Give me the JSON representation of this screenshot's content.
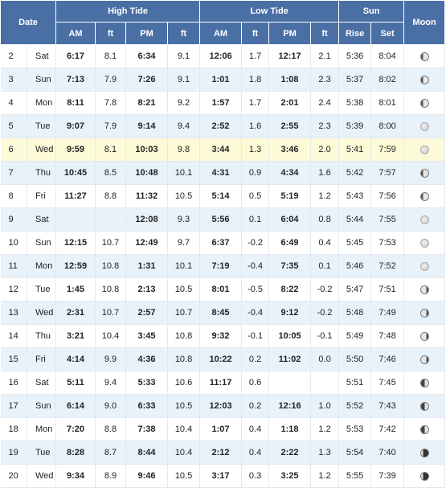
{
  "header": {
    "date": "Date",
    "high_tide": "High Tide",
    "low_tide": "Low Tide",
    "sun": "Sun",
    "moon": "Moon",
    "am": "AM",
    "pm": "PM",
    "ft": "ft",
    "rise": "Rise",
    "set": "Set"
  },
  "rows": [
    {
      "date": "2",
      "day": "Sat",
      "h_am": "6:17",
      "h_am_ft": "8.1",
      "h_pm": "6:34",
      "h_pm_ft": "9.1",
      "l_am": "12:06",
      "l_am_ft": "1.7",
      "l_pm": "12:17",
      "l_pm_ft": "2.1",
      "rise": "5:36",
      "set": "8:04",
      "moon": "waning-gibbous-icon"
    },
    {
      "date": "3",
      "day": "Sun",
      "h_am": "7:13",
      "h_am_ft": "7.9",
      "h_pm": "7:26",
      "h_pm_ft": "9.1",
      "l_am": "1:01",
      "l_am_ft": "1.8",
      "l_pm": "1:08",
      "l_pm_ft": "2.3",
      "rise": "5:37",
      "set": "8:02",
      "moon": "waning-gibbous-icon"
    },
    {
      "date": "4",
      "day": "Mon",
      "h_am": "8:11",
      "h_am_ft": "7.8",
      "h_pm": "8:21",
      "h_pm_ft": "9.2",
      "l_am": "1:57",
      "l_am_ft": "1.7",
      "l_pm": "2:01",
      "l_pm_ft": "2.4",
      "rise": "5:38",
      "set": "8:01",
      "moon": "waning-gibbous-icon"
    },
    {
      "date": "5",
      "day": "Tue",
      "h_am": "9:07",
      "h_am_ft": "7.9",
      "h_pm": "9:14",
      "h_pm_ft": "9.4",
      "l_am": "2:52",
      "l_am_ft": "1.6",
      "l_pm": "2:55",
      "l_pm_ft": "2.3",
      "rise": "5:39",
      "set": "8:00",
      "moon": "full-moon-icon"
    },
    {
      "date": "6",
      "day": "Wed",
      "h_am": "9:59",
      "h_am_ft": "8.1",
      "h_pm": "10:03",
      "h_pm_ft": "9.8",
      "l_am": "3:44",
      "l_am_ft": "1.3",
      "l_pm": "3:46",
      "l_pm_ft": "2.0",
      "rise": "5:41",
      "set": "7:59",
      "moon": "full-moon-icon",
      "today": true
    },
    {
      "date": "7",
      "day": "Thu",
      "h_am": "10:45",
      "h_am_ft": "8.5",
      "h_pm": "10:48",
      "h_pm_ft": "10.1",
      "l_am": "4:31",
      "l_am_ft": "0.9",
      "l_pm": "4:34",
      "l_pm_ft": "1.6",
      "rise": "5:42",
      "set": "7:57",
      "moon": "waning-gibbous-icon"
    },
    {
      "date": "8",
      "day": "Fri",
      "h_am": "11:27",
      "h_am_ft": "8.8",
      "h_pm": "11:32",
      "h_pm_ft": "10.5",
      "l_am": "5:14",
      "l_am_ft": "0.5",
      "l_pm": "5:19",
      "l_pm_ft": "1.2",
      "rise": "5:43",
      "set": "7:56",
      "moon": "waning-gibbous-icon"
    },
    {
      "date": "9",
      "day": "Sat",
      "h_am": "",
      "h_am_ft": "",
      "h_pm": "12:08",
      "h_pm_ft": "9.3",
      "l_am": "5:56",
      "l_am_ft": "0.1",
      "l_pm": "6:04",
      "l_pm_ft": "0.8",
      "rise": "5:44",
      "set": "7:55",
      "moon": "full-moon-icon"
    },
    {
      "date": "10",
      "day": "Sun",
      "h_am": "12:15",
      "h_am_ft": "10.7",
      "h_pm": "12:49",
      "h_pm_ft": "9.7",
      "l_am": "6:37",
      "l_am_ft": "-0.2",
      "l_pm": "6:49",
      "l_pm_ft": "0.4",
      "rise": "5:45",
      "set": "7:53",
      "moon": "full-moon-icon"
    },
    {
      "date": "11",
      "day": "Mon",
      "h_am": "12:59",
      "h_am_ft": "10.8",
      "h_pm": "1:31",
      "h_pm_ft": "10.1",
      "l_am": "7:19",
      "l_am_ft": "-0.4",
      "l_pm": "7:35",
      "l_pm_ft": "0.1",
      "rise": "5:46",
      "set": "7:52",
      "moon": "full-moon-icon"
    },
    {
      "date": "12",
      "day": "Tue",
      "h_am": "1:45",
      "h_am_ft": "10.8",
      "h_pm": "2:13",
      "h_pm_ft": "10.5",
      "l_am": "8:01",
      "l_am_ft": "-0.5",
      "l_pm": "8:22",
      "l_pm_ft": "-0.2",
      "rise": "5:47",
      "set": "7:51",
      "moon": "waxing-gibbous-icon"
    },
    {
      "date": "13",
      "day": "Wed",
      "h_am": "2:31",
      "h_am_ft": "10.7",
      "h_pm": "2:57",
      "h_pm_ft": "10.7",
      "l_am": "8:45",
      "l_am_ft": "-0.4",
      "l_pm": "9:12",
      "l_pm_ft": "-0.2",
      "rise": "5:48",
      "set": "7:49",
      "moon": "waxing-gibbous-icon"
    },
    {
      "date": "14",
      "day": "Thu",
      "h_am": "3:21",
      "h_am_ft": "10.4",
      "h_pm": "3:45",
      "h_pm_ft": "10.8",
      "l_am": "9:32",
      "l_am_ft": "-0.1",
      "l_pm": "10:05",
      "l_pm_ft": "-0.1",
      "rise": "5:49",
      "set": "7:48",
      "moon": "waxing-gibbous-icon"
    },
    {
      "date": "15",
      "day": "Fri",
      "h_am": "4:14",
      "h_am_ft": "9.9",
      "h_pm": "4:36",
      "h_pm_ft": "10.8",
      "l_am": "10:22",
      "l_am_ft": "0.2",
      "l_pm": "11:02",
      "l_pm_ft": "0.0",
      "rise": "5:50",
      "set": "7:46",
      "moon": "waxing-gibbous-icon"
    },
    {
      "date": "16",
      "day": "Sat",
      "h_am": "5:11",
      "h_am_ft": "9.4",
      "h_pm": "5:33",
      "h_pm_ft": "10.6",
      "l_am": "11:17",
      "l_am_ft": "0.6",
      "l_pm": "",
      "l_pm_ft": "",
      "rise": "5:51",
      "set": "7:45",
      "moon": "last-quarter-icon"
    },
    {
      "date": "17",
      "day": "Sun",
      "h_am": "6:14",
      "h_am_ft": "9.0",
      "h_pm": "6:33",
      "h_pm_ft": "10.5",
      "l_am": "12:03",
      "l_am_ft": "0.2",
      "l_pm": "12:16",
      "l_pm_ft": "1.0",
      "rise": "5:52",
      "set": "7:43",
      "moon": "last-quarter-icon"
    },
    {
      "date": "18",
      "day": "Mon",
      "h_am": "7:20",
      "h_am_ft": "8.8",
      "h_pm": "7:38",
      "h_pm_ft": "10.4",
      "l_am": "1:07",
      "l_am_ft": "0.4",
      "l_pm": "1:18",
      "l_pm_ft": "1.2",
      "rise": "5:53",
      "set": "7:42",
      "moon": "last-quarter-icon"
    },
    {
      "date": "19",
      "day": "Tue",
      "h_am": "8:28",
      "h_am_ft": "8.7",
      "h_pm": "8:44",
      "h_pm_ft": "10.4",
      "l_am": "2:12",
      "l_am_ft": "0.4",
      "l_pm": "2:22",
      "l_pm_ft": "1.3",
      "rise": "5:54",
      "set": "7:40",
      "moon": "waxing-crescent-icon"
    },
    {
      "date": "20",
      "day": "Wed",
      "h_am": "9:34",
      "h_am_ft": "8.9",
      "h_pm": "9:46",
      "h_pm_ft": "10.5",
      "l_am": "3:17",
      "l_am_ft": "0.3",
      "l_pm": "3:25",
      "l_pm_ft": "1.2",
      "rise": "5:55",
      "set": "7:39",
      "moon": "waxing-crescent-icon"
    }
  ]
}
